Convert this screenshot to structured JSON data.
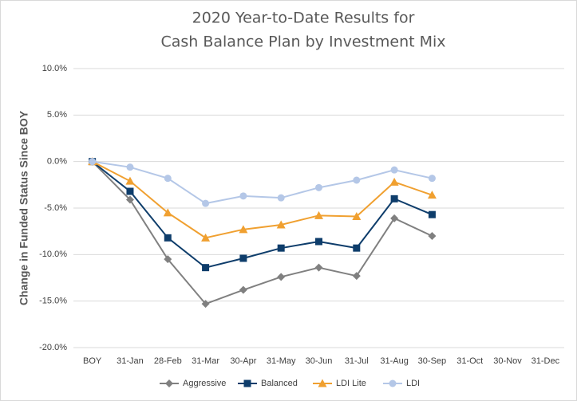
{
  "chart_data": {
    "type": "line",
    "title": [
      "2020 Year-to-Date Results for",
      "Cash Balance Plan by Investment Mix"
    ],
    "y_label": "Change in Funded Status Since BOY",
    "categories": [
      "BOY",
      "31-Jan",
      "28-Feb",
      "31-Mar",
      "30-Apr",
      "31-May",
      "30-Jun",
      "31-Jul",
      "31-Aug",
      "30-Sep",
      "31-Oct",
      "30-Nov",
      "31-Dec"
    ],
    "series": [
      {
        "name": "Aggressive",
        "color": "#808080",
        "marker": "diamond",
        "values": [
          0,
          -4.1,
          -10.5,
          -15.3,
          -13.8,
          -12.4,
          -11.4,
          -12.3,
          -6.1,
          -8.0,
          null,
          null,
          null
        ]
      },
      {
        "name": "Balanced",
        "color": "#0e3d6b",
        "marker": "square",
        "values": [
          0,
          -3.2,
          -8.2,
          -11.4,
          -10.4,
          -9.3,
          -8.6,
          -9.3,
          -4.0,
          -5.7,
          null,
          null,
          null
        ]
      },
      {
        "name": "LDI Lite",
        "color": "#f0a030",
        "marker": "triangle",
        "values": [
          0,
          -2.1,
          -5.5,
          -8.2,
          -7.3,
          -6.8,
          -5.8,
          -5.9,
          -2.2,
          -3.6,
          null,
          null,
          null
        ]
      },
      {
        "name": "LDI",
        "color": "#b4c7e7",
        "marker": "circle",
        "values": [
          0,
          -0.6,
          -1.8,
          -4.5,
          -3.7,
          -3.9,
          -2.8,
          -2.0,
          -0.9,
          -1.8,
          null,
          null,
          null
        ]
      }
    ],
    "ylim": [
      -20,
      10
    ],
    "yticks": [
      {
        "value": -20,
        "label": "-20.0%"
      },
      {
        "value": -15,
        "label": "-15.0%"
      },
      {
        "value": -10,
        "label": "-10.0%"
      },
      {
        "value": -5,
        "label": "-5.0%"
      },
      {
        "value": 0,
        "label": "0.0%"
      },
      {
        "value": 5,
        "label": "5.0%"
      },
      {
        "value": 10,
        "label": "10.0%"
      }
    ],
    "grid": true,
    "legend": "bottom"
  }
}
